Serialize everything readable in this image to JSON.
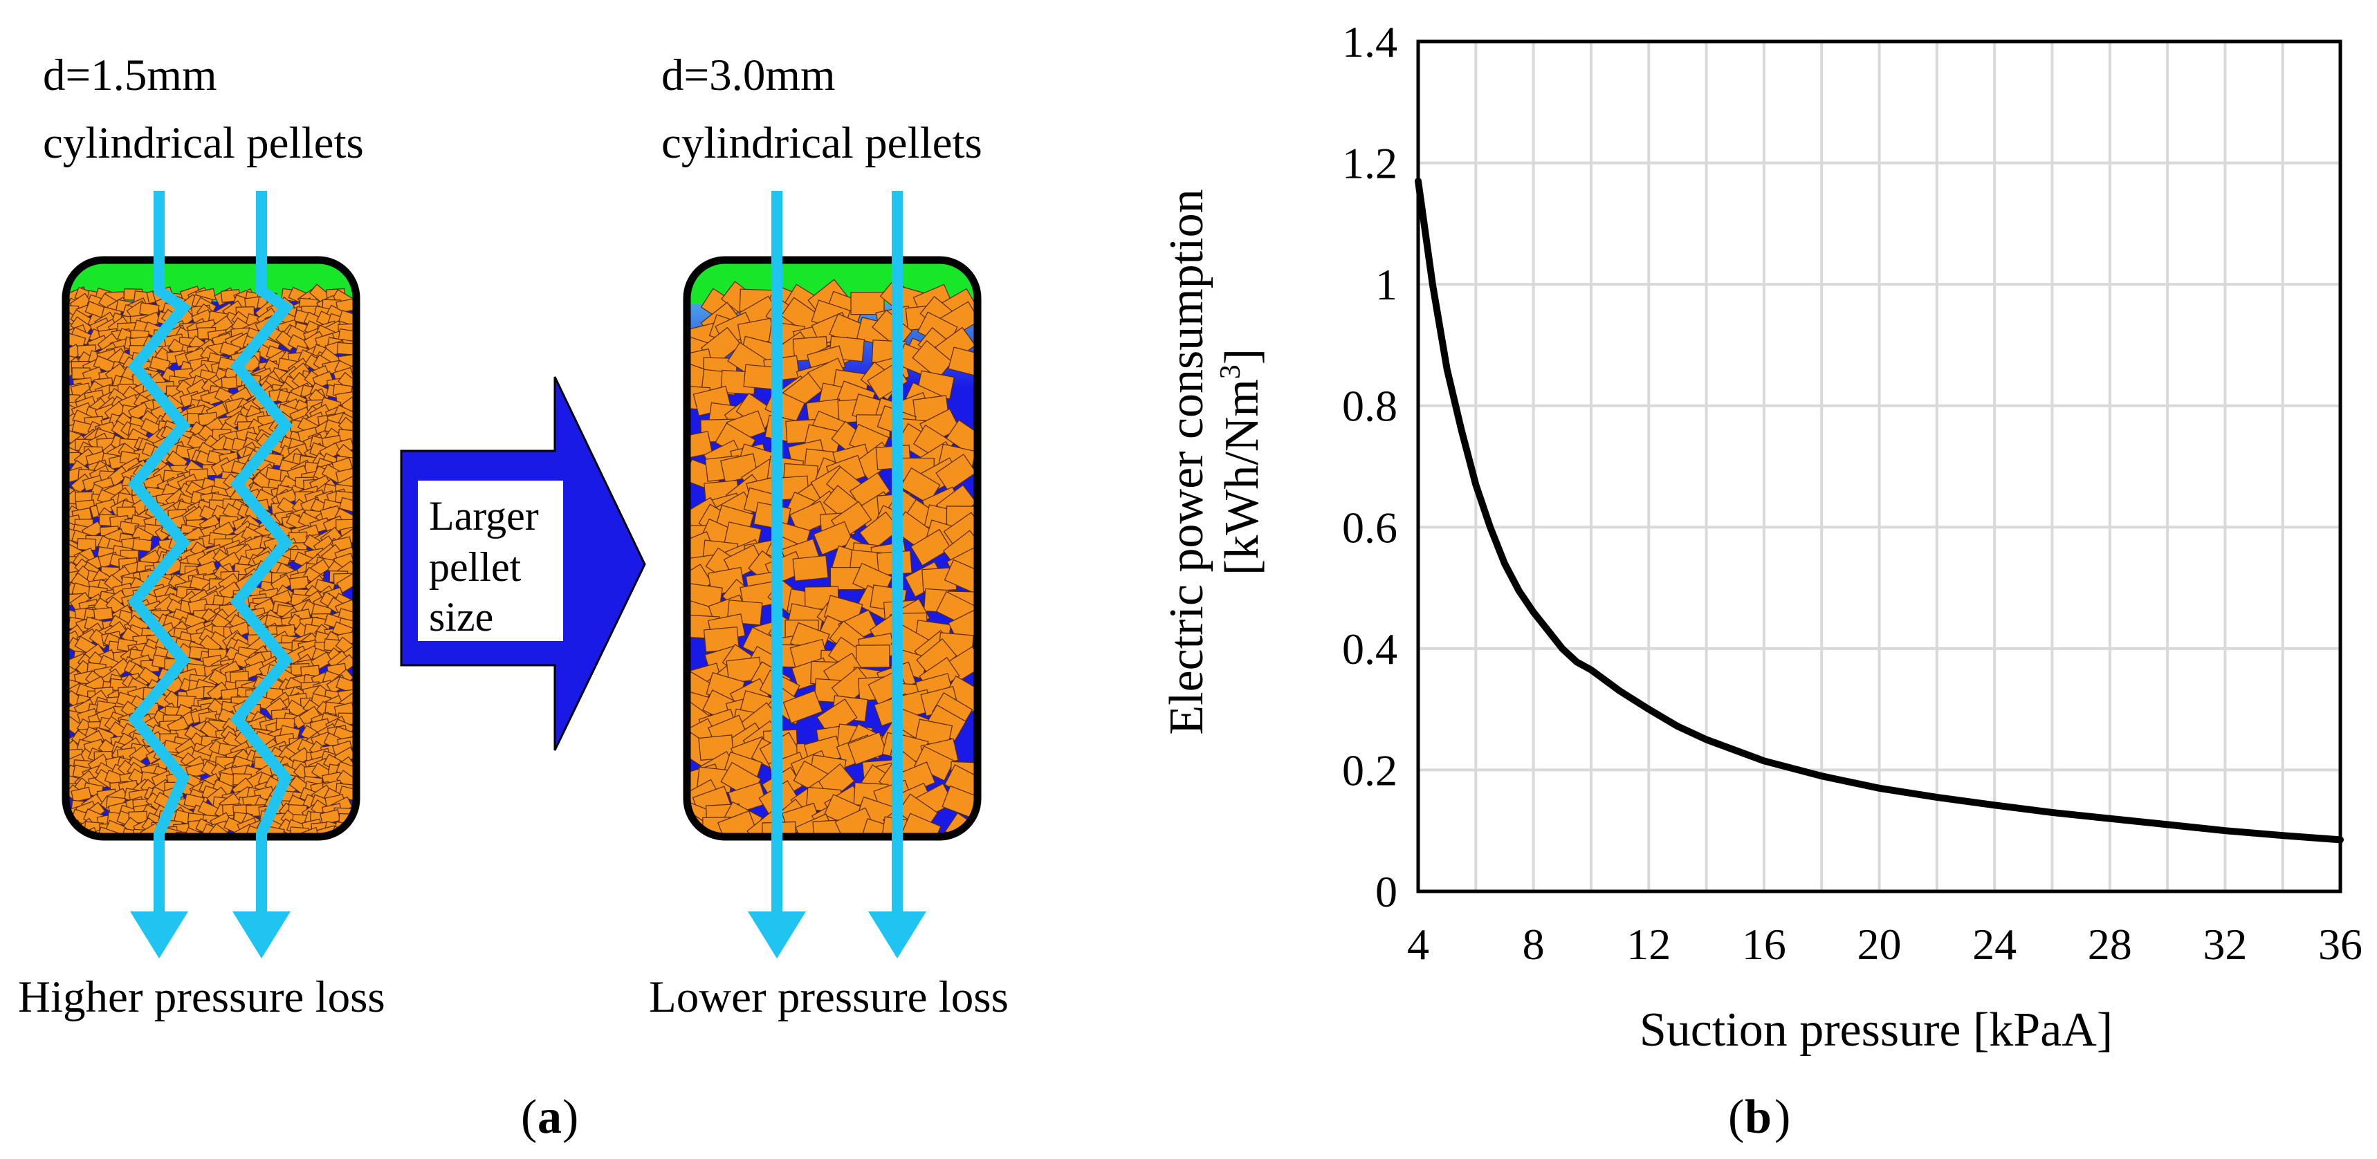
{
  "panel_a": {
    "left_bed": {
      "title_line1": "d=1.5mm",
      "title_line2": "cylindrical pellets",
      "caption": "Higher pressure loss"
    },
    "right_bed": {
      "title_line1": "d=3.0mm",
      "title_line2": "cylindrical pellets",
      "caption": "Lower pressure loss"
    },
    "arrow_label": [
      "Larger",
      "pellet",
      "size"
    ],
    "label_open": "(",
    "label_letter": "a",
    "label_close": ")",
    "colors": {
      "top_gas": "#18e628",
      "void": "#1a1ae6",
      "pellet": "#f5921e",
      "flow": "#1fc4f0",
      "arrow": "#1a1ae6"
    }
  },
  "panel_b": {
    "label_open": "(",
    "label_letter": "b",
    "label_close": ")"
  },
  "chart_data": {
    "type": "line",
    "title": "",
    "xlabel": "Suction pressure [kPaA]",
    "ylabel_line1": "Electric power consumption",
    "ylabel_line2_base": "[kWh/Nm",
    "ylabel_line2_sup": "3",
    "ylabel_line2_end": "]",
    "xlim": [
      4,
      36
    ],
    "ylim": [
      0,
      1.4
    ],
    "x_ticks": [
      4,
      8,
      12,
      16,
      20,
      24,
      28,
      32,
      36
    ],
    "x_tick_labels": [
      "4",
      "8",
      "12",
      "16",
      "20",
      "24",
      "28",
      "32",
      "36"
    ],
    "y_ticks": [
      0,
      0.2,
      0.4,
      0.6,
      0.8,
      1.0,
      1.2,
      1.4
    ],
    "y_tick_labels": [
      "0",
      "0.2",
      "0.4",
      "0.6",
      "0.8",
      "1",
      "1.2",
      "1.4"
    ],
    "grid": true,
    "series": [
      {
        "name": "Electric power consumption",
        "x": [
          4,
          4.5,
          5,
          5.5,
          6,
          6.5,
          7,
          7.5,
          8,
          8.5,
          9,
          9.5,
          10,
          11,
          12,
          13,
          14,
          16,
          18,
          20,
          22,
          24,
          26,
          28,
          30,
          32,
          34,
          36
        ],
        "y": [
          1.17,
          1.0,
          0.86,
          0.76,
          0.67,
          0.6,
          0.54,
          0.495,
          0.46,
          0.43,
          0.4,
          0.378,
          0.365,
          0.33,
          0.3,
          0.272,
          0.25,
          0.215,
          0.19,
          0.17,
          0.155,
          0.142,
          0.13,
          0.12,
          0.11,
          0.1,
          0.092,
          0.085
        ]
      }
    ]
  }
}
